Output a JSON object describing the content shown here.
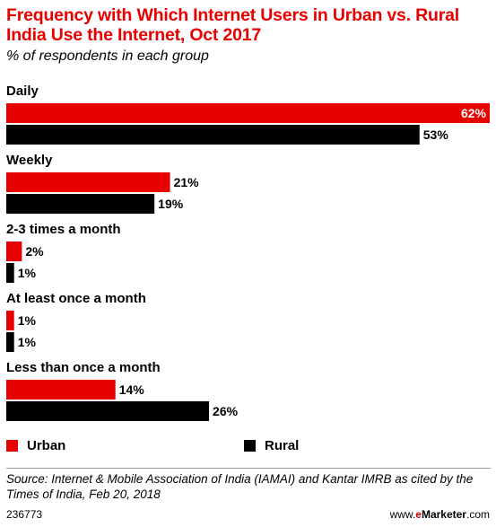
{
  "header": {
    "title": "Frequency with Which Internet Users in Urban vs. Rural India Use the Internet, Oct 2017",
    "subtitle": "% of respondents in each group"
  },
  "chart_data": {
    "type": "bar",
    "orientation": "horizontal",
    "categories": [
      "Daily",
      "Weekly",
      "2-3 times a month",
      "At least once a month",
      "Less than once a month"
    ],
    "series": [
      {
        "name": "Urban",
        "values": [
          62,
          21,
          2,
          1,
          14
        ],
        "labels": [
          "62%",
          "21%",
          "2%",
          "1%",
          "14%"
        ],
        "color": "#e60000"
      },
      {
        "name": "Rural",
        "values": [
          53,
          19,
          1,
          1,
          26
        ],
        "labels": [
          "53%",
          "19%",
          "1%",
          "1%",
          "26%"
        ],
        "color": "#000000"
      }
    ],
    "xlim": [
      0,
      62
    ],
    "grid": false,
    "legend_position": "bottom"
  },
  "legend": [
    {
      "label": "Urban",
      "color": "#e60000"
    },
    {
      "label": "Rural",
      "color": "#000000"
    }
  ],
  "footer": {
    "source": "Source: Internet & Mobile Association of India (IAMAI) and Kantar IMRB as cited by the Times of India, Feb 20, 2018",
    "chart_id": "236773",
    "brand_prefix": "www.",
    "brand_e": "e",
    "brand_name": "Marketer",
    "brand_suffix": ".com"
  }
}
